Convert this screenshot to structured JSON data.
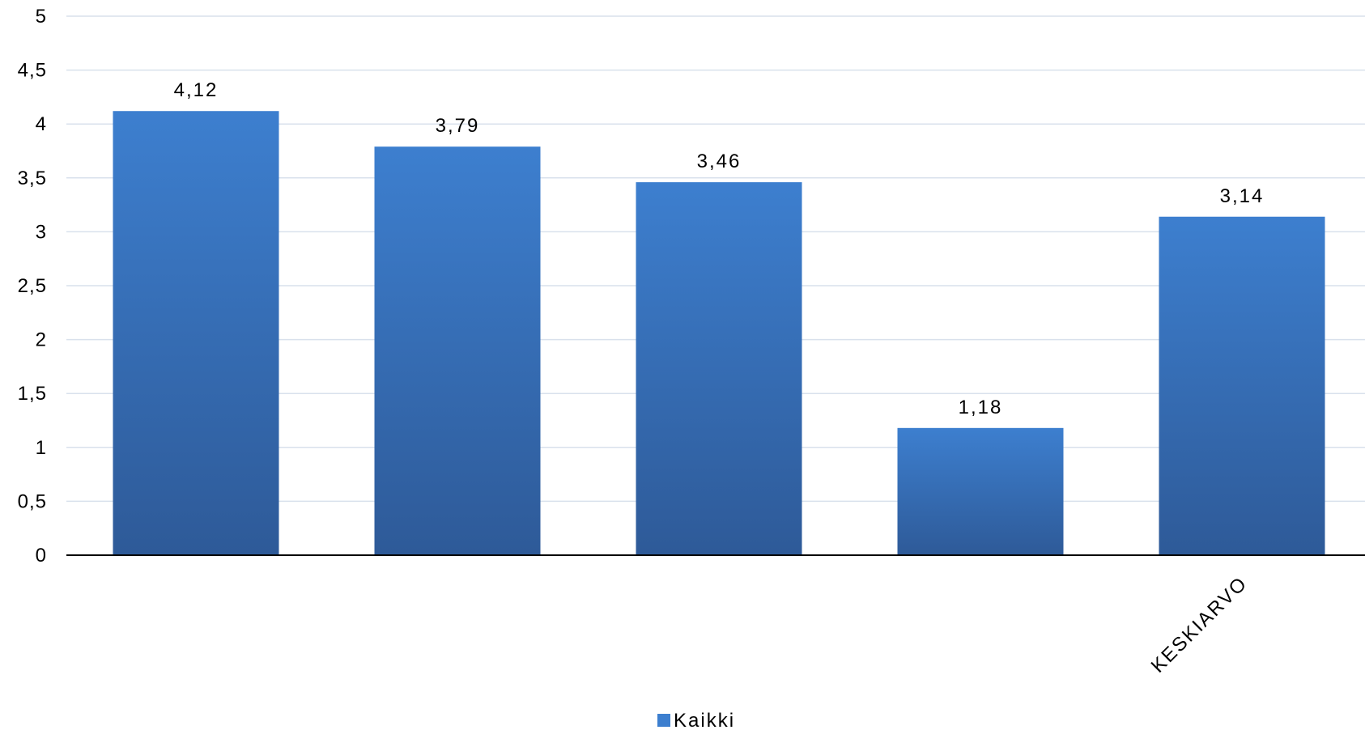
{
  "chart_data": {
    "type": "bar",
    "categories": [
      "",
      "",
      "",
      "",
      "KESKIARVO"
    ],
    "series": [
      {
        "name": "Kaikki",
        "values": [
          4.12,
          3.79,
          3.46,
          1.18,
          3.14
        ],
        "value_labels": [
          "4,12",
          "3,79",
          "3,46",
          "1,18",
          "3,14"
        ]
      }
    ],
    "ylim": [
      0,
      5
    ],
    "yticks": [
      0,
      0.5,
      1,
      1.5,
      2,
      2.5,
      3,
      3.5,
      4,
      4.5,
      5
    ],
    "ytick_labels": [
      "0",
      "0,5",
      "1",
      "1,5",
      "2",
      "2,5",
      "3",
      "3,5",
      "4",
      "4,5",
      "5"
    ],
    "grid": true,
    "legend_position": "bottom-center",
    "colors": {
      "bar_top": "#3d7fcf",
      "bar_bottom": "#2e5a98",
      "grid": "#d9e1ec",
      "axis": "#000000"
    }
  }
}
